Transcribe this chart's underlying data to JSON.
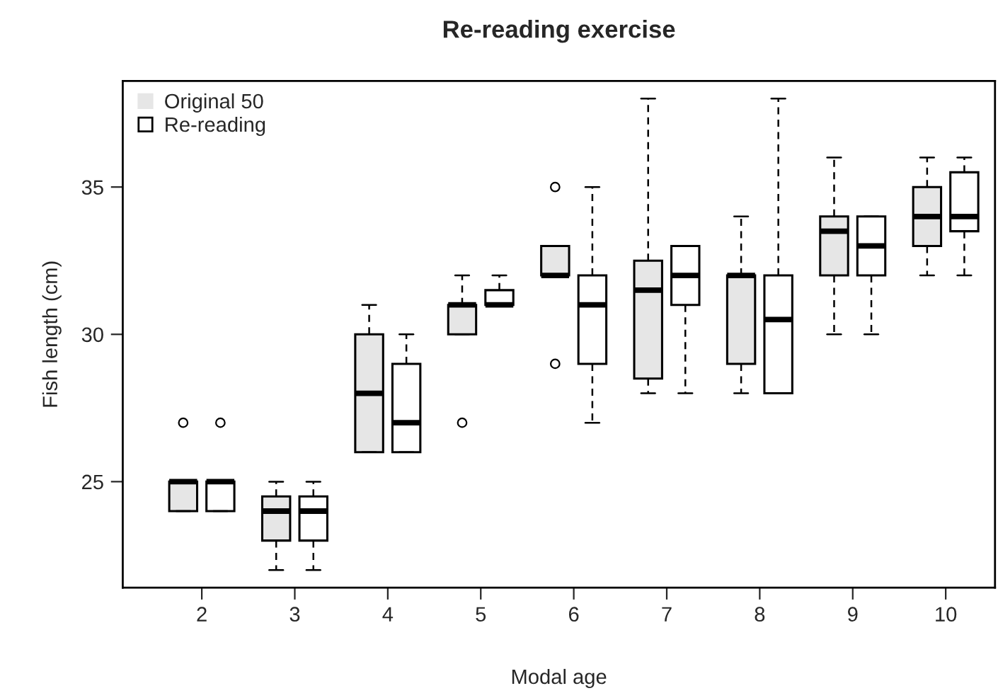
{
  "chart_data": {
    "type": "box",
    "title": "Re-reading exercise",
    "xlabel": "Modal age",
    "ylabel": "Fish length (cm)",
    "categories": [
      "2",
      "3",
      "4",
      "5",
      "6",
      "7",
      "8",
      "9",
      "10"
    ],
    "ylim": [
      21.4,
      38.6
    ],
    "yticks": [
      25,
      30,
      35
    ],
    "grid": false,
    "legend": "top left",
    "series": [
      {
        "name": "Original 50",
        "color": "#e6e6e6",
        "boxes": [
          {
            "low": 24,
            "q1": 24,
            "median": 25,
            "q3": 25,
            "high": 25,
            "outliers": [
              27
            ]
          },
          {
            "low": 22,
            "q1": 23,
            "median": 24,
            "q3": 24.5,
            "high": 25
          },
          {
            "low": 26,
            "q1": 26,
            "median": 28,
            "q3": 30,
            "high": 31
          },
          {
            "low": 30,
            "q1": 30,
            "median": 31,
            "q3": 31,
            "high": 32,
            "outliers": [
              27
            ]
          },
          {
            "low": 32,
            "q1": 32,
            "median": 32,
            "q3": 33,
            "high": 33,
            "outliers": [
              35,
              29
            ]
          },
          {
            "low": 28,
            "q1": 28.5,
            "median": 31.5,
            "q3": 32.5,
            "high": 38
          },
          {
            "low": 28,
            "q1": 29,
            "median": 32,
            "q3": 32,
            "high": 34
          },
          {
            "low": 30,
            "q1": 32,
            "median": 33.5,
            "q3": 34,
            "high": 36
          },
          {
            "low": 32,
            "q1": 33,
            "median": 34,
            "q3": 35,
            "high": 36
          }
        ]
      },
      {
        "name": "Re-reading",
        "color": "#ffffff",
        "boxes": [
          {
            "low": 24,
            "q1": 24,
            "median": 25,
            "q3": 25,
            "high": 25,
            "outliers": [
              27
            ]
          },
          {
            "low": 22,
            "q1": 23,
            "median": 24,
            "q3": 24.5,
            "high": 25
          },
          {
            "low": 26,
            "q1": 26,
            "median": 27,
            "q3": 29,
            "high": 30
          },
          {
            "low": 31,
            "q1": 31,
            "median": 31,
            "q3": 31.5,
            "high": 32
          },
          {
            "low": 27,
            "q1": 29,
            "median": 31,
            "q3": 32,
            "high": 35
          },
          {
            "low": 28,
            "q1": 31,
            "median": 32,
            "q3": 33,
            "high": 33
          },
          {
            "low": 28,
            "q1": 28,
            "median": 30.5,
            "q3": 32,
            "high": 38
          },
          {
            "low": 30,
            "q1": 32,
            "median": 33,
            "q3": 34,
            "high": 34
          },
          {
            "low": 32,
            "q1": 33.5,
            "median": 34,
            "q3": 35.5,
            "high": 36
          }
        ]
      }
    ]
  }
}
